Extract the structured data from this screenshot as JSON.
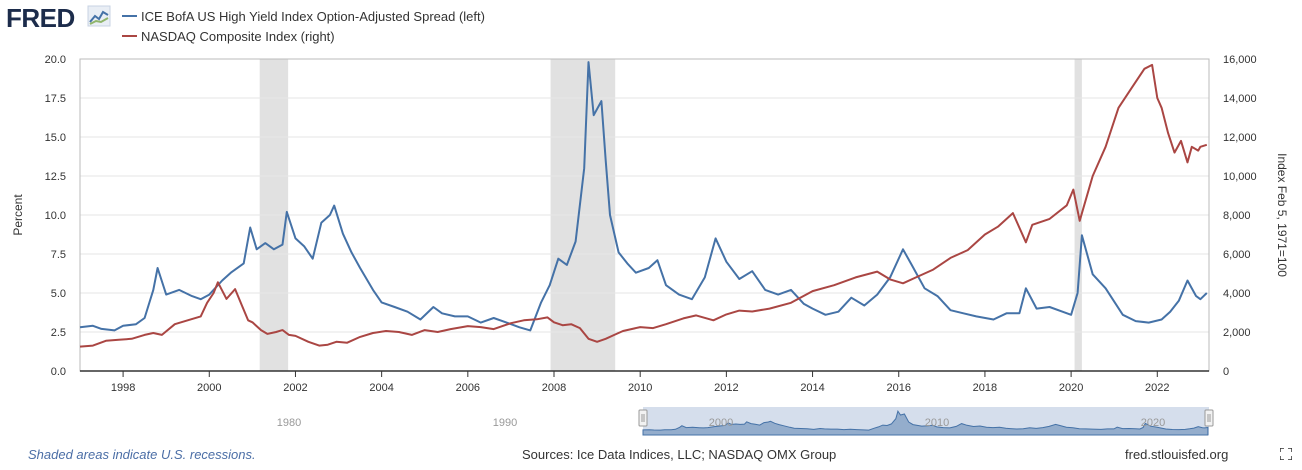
{
  "header": {
    "logo_text": "FRED",
    "logo_icon": "fred-chart-logo-icon"
  },
  "footer": {
    "recession_note": "Shaded areas indicate U.S. recessions.",
    "sources": "Sources: Ice Data Indices, LLC; NASDAQ OMX Group",
    "site": "fred.stlouisfed.org",
    "fullscreen_icon": "fullscreen-icon"
  },
  "colors": {
    "spread": "#4572a7",
    "nasdaq": "#aa4643",
    "recession": "#e1e1e1",
    "grid": "#e6e6e6",
    "plot_border": "#bbbbbb",
    "navigator_fill": "#b9c8e0"
  },
  "navigator": {
    "ticks": [
      "1980",
      "1990",
      "2000",
      "2010",
      "2020"
    ]
  },
  "chart_data": {
    "type": "line",
    "title": "",
    "grid": true,
    "legend_position": "top-left",
    "xlim": [
      1997.0,
      2023.2
    ],
    "x_ticks": [
      1998,
      2000,
      2002,
      2004,
      2006,
      2008,
      2010,
      2012,
      2014,
      2016,
      2018,
      2020,
      2022
    ],
    "xlabel": "",
    "y_left": {
      "label": "Percent",
      "lim": [
        0,
        20
      ],
      "ticks": [
        "0.0",
        "2.5",
        "5.0",
        "7.5",
        "10.0",
        "12.5",
        "15.0",
        "17.5",
        "20.0"
      ]
    },
    "y_right": {
      "label": "Index Feb 5, 1971=100",
      "lim": [
        0,
        16000
      ],
      "ticks": [
        "0",
        "2,000",
        "4,000",
        "6,000",
        "8,000",
        "10,000",
        "12,000",
        "14,000",
        "16,000"
      ]
    },
    "recessions": [
      [
        2001.17,
        2001.83
      ],
      [
        2007.92,
        2009.42
      ],
      [
        2020.08,
        2020.25
      ]
    ],
    "series": [
      {
        "name": "ICE BofA US High Yield Index Option-Adjusted Spread (left)",
        "axis": "left",
        "x": [
          1997.0,
          1997.3,
          1997.5,
          1997.8,
          1998.0,
          1998.3,
          1998.5,
          1998.7,
          1998.8,
          1999.0,
          1999.3,
          1999.6,
          1999.8,
          2000.0,
          2000.3,
          2000.5,
          2000.8,
          2000.95,
          2001.1,
          2001.3,
          2001.5,
          2001.7,
          2001.8,
          2002.0,
          2002.2,
          2002.4,
          2002.6,
          2002.8,
          2002.9,
          2003.1,
          2003.3,
          2003.5,
          2003.8,
          2004.0,
          2004.3,
          2004.6,
          2004.9,
          2005.2,
          2005.4,
          2005.7,
          2006.0,
          2006.3,
          2006.6,
          2006.9,
          2007.2,
          2007.45,
          2007.7,
          2007.9,
          2008.1,
          2008.3,
          2008.5,
          2008.7,
          2008.8,
          2008.92,
          2009.1,
          2009.2,
          2009.3,
          2009.5,
          2009.7,
          2009.9,
          2010.2,
          2010.4,
          2010.6,
          2010.9,
          2011.2,
          2011.5,
          2011.75,
          2012.0,
          2012.3,
          2012.6,
          2012.9,
          2013.2,
          2013.5,
          2013.8,
          2014.0,
          2014.3,
          2014.6,
          2014.9,
          2015.2,
          2015.5,
          2015.8,
          2016.1,
          2016.3,
          2016.6,
          2016.9,
          2017.2,
          2017.5,
          2017.8,
          2018.2,
          2018.5,
          2018.8,
          2018.95,
          2019.2,
          2019.5,
          2019.8,
          2020.0,
          2020.15,
          2020.25,
          2020.5,
          2020.8,
          2021.2,
          2021.5,
          2021.8,
          2022.1,
          2022.3,
          2022.5,
          2022.7,
          2022.9,
          2023.0,
          2023.15
        ],
        "values": [
          2.8,
          2.9,
          2.7,
          2.6,
          2.9,
          3.0,
          3.4,
          5.2,
          6.6,
          4.9,
          5.2,
          4.8,
          4.6,
          4.9,
          5.8,
          6.3,
          6.9,
          9.2,
          7.8,
          8.2,
          7.8,
          8.1,
          10.2,
          8.5,
          8.0,
          7.2,
          9.5,
          10.0,
          10.6,
          8.8,
          7.6,
          6.6,
          5.2,
          4.4,
          4.1,
          3.8,
          3.3,
          4.1,
          3.7,
          3.5,
          3.5,
          3.1,
          3.4,
          3.1,
          2.8,
          2.6,
          4.4,
          5.5,
          7.2,
          6.8,
          8.3,
          13.0,
          19.8,
          16.4,
          17.3,
          13.5,
          10.0,
          7.6,
          6.9,
          6.3,
          6.6,
          7.1,
          5.5,
          4.9,
          4.6,
          6.0,
          8.5,
          7.0,
          5.9,
          6.4,
          5.2,
          4.9,
          5.2,
          4.3,
          4.0,
          3.6,
          3.8,
          4.7,
          4.2,
          4.9,
          6.0,
          7.8,
          6.8,
          5.3,
          4.8,
          3.9,
          3.7,
          3.5,
          3.3,
          3.7,
          3.7,
          5.3,
          4.0,
          4.1,
          3.8,
          3.6,
          5.0,
          8.7,
          6.2,
          5.3,
          3.6,
          3.2,
          3.1,
          3.3,
          3.8,
          4.5,
          5.8,
          4.8,
          4.6,
          5.0
        ]
      },
      {
        "name": "NASDAQ Composite Index (right)",
        "axis": "right",
        "x": [
          1997.0,
          1997.3,
          1997.6,
          1997.9,
          1998.2,
          1998.5,
          1998.7,
          1998.9,
          1999.2,
          1999.5,
          1999.8,
          1999.95,
          2000.1,
          2000.2,
          2000.4,
          2000.6,
          2000.75,
          2000.9,
          2001.0,
          2001.2,
          2001.35,
          2001.55,
          2001.7,
          2001.85,
          2002.0,
          2002.3,
          2002.55,
          2002.75,
          2002.95,
          2003.2,
          2003.5,
          2003.8,
          2004.1,
          2004.4,
          2004.7,
          2005.0,
          2005.3,
          2005.6,
          2006.0,
          2006.3,
          2006.6,
          2007.0,
          2007.3,
          2007.6,
          2007.85,
          2008.0,
          2008.2,
          2008.4,
          2008.6,
          2008.8,
          2009.0,
          2009.2,
          2009.4,
          2009.6,
          2010.0,
          2010.3,
          2010.6,
          2011.0,
          2011.3,
          2011.7,
          2012.0,
          2012.3,
          2012.6,
          2013.0,
          2013.5,
          2014.0,
          2014.5,
          2015.0,
          2015.5,
          2015.8,
          2016.1,
          2016.4,
          2016.8,
          2017.2,
          2017.6,
          2018.0,
          2018.3,
          2018.65,
          2018.95,
          2019.1,
          2019.5,
          2019.9,
          2020.05,
          2020.2,
          2020.5,
          2020.8,
          2021.1,
          2021.4,
          2021.7,
          2021.88,
          2022.0,
          2022.1,
          2022.25,
          2022.4,
          2022.55,
          2022.7,
          2022.8,
          2022.95,
          2023.0,
          2023.15
        ],
        "values": [
          1250,
          1300,
          1550,
          1600,
          1650,
          1850,
          1950,
          1850,
          2400,
          2600,
          2800,
          3500,
          4000,
          4550,
          3700,
          4200,
          3400,
          2600,
          2500,
          2100,
          1900,
          2000,
          2100,
          1850,
          1800,
          1500,
          1300,
          1350,
          1500,
          1450,
          1750,
          1950,
          2050,
          2000,
          1850,
          2100,
          2000,
          2150,
          2300,
          2250,
          2150,
          2450,
          2600,
          2650,
          2750,
          2500,
          2350,
          2400,
          2200,
          1650,
          1500,
          1650,
          1850,
          2050,
          2250,
          2200,
          2400,
          2700,
          2850,
          2600,
          2900,
          3100,
          3050,
          3200,
          3500,
          4100,
          4400,
          4800,
          5100,
          4700,
          4500,
          4800,
          5200,
          5800,
          6200,
          7000,
          7400,
          8100,
          6600,
          7500,
          7800,
          8500,
          9300,
          7700,
          10000,
          11500,
          13500,
          14500,
          15500,
          15700,
          14000,
          13500,
          12200,
          11200,
          11800,
          10700,
          11500,
          11300,
          11500,
          11600
        ]
      }
    ]
  }
}
